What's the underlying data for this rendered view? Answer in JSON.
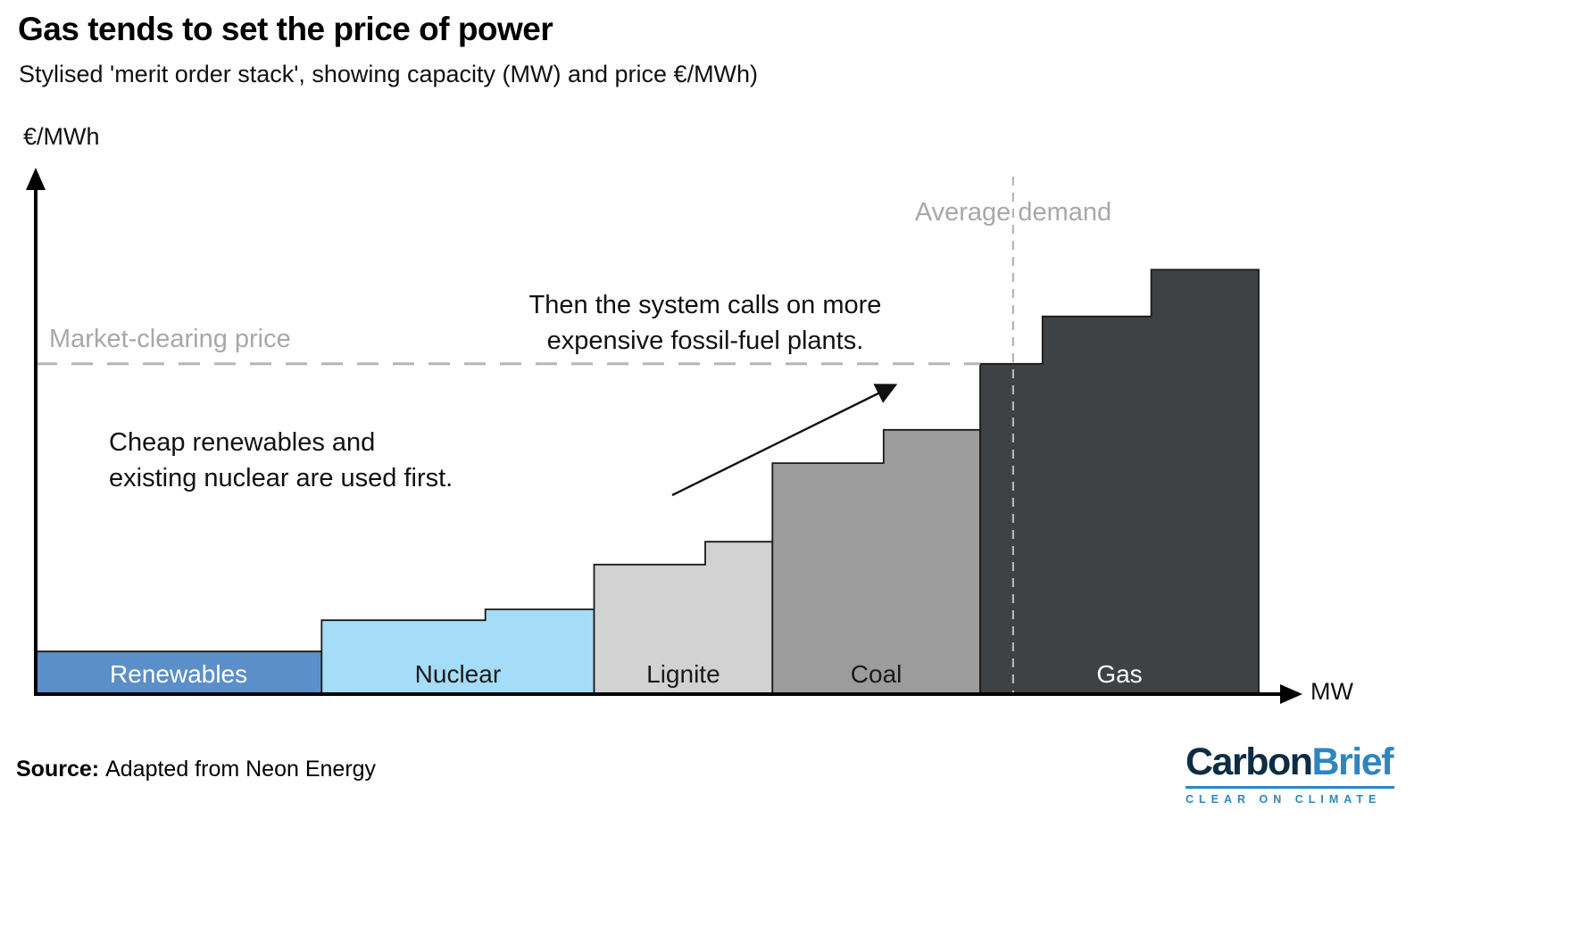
{
  "header": {
    "title": "Gas tends to set the price of power",
    "subtitle": "Stylised 'merit order stack', showing capacity (MW) and price €/MWh)"
  },
  "axes": {
    "y_label": "€/MWh",
    "x_label": "MW"
  },
  "annotations": {
    "market_clearing": "Market-clearing price",
    "average_demand": "Average demand",
    "note_cheap": {
      "line1": "Cheap renewables and",
      "line2": "existing nuclear are used first."
    },
    "note_expensive": {
      "line1": "Then the system calls on more",
      "line2": "expensive fossil-fuel plants."
    }
  },
  "footer": {
    "source_label": "Source:",
    "source_text": "Adapted from Neon Energy"
  },
  "logo": {
    "part1": "Carbon",
    "part2": "Brief",
    "tagline": "CLEAR ON CLIMATE"
  },
  "chart_data": {
    "type": "bar",
    "subtype": "merit-order-stack-step-chart",
    "title": "Gas tends to set the price of power",
    "xlabel": "MW",
    "ylabel": "€/MWh",
    "numeric_ticks": false,
    "units_note": "Stylised chart: capacity (x) and price (y) in relative units 0-100; no numeric tick labels are shown in the original",
    "segments": [
      {
        "name": "Renewables",
        "color": "#5b8fc9",
        "label_color": "#ffffff",
        "steps": [
          {
            "capacity": 23.4,
            "price": 8.2
          }
        ]
      },
      {
        "name": "Nuclear",
        "color": "#a5dcf7",
        "label_color": "#1a1a1a",
        "steps": [
          {
            "capacity": 13.4,
            "price": 14.2
          },
          {
            "capacity": 8.9,
            "price": 16.3
          }
        ]
      },
      {
        "name": "Lignite",
        "color": "#d2d2d2",
        "label_color": "#1a1a1a",
        "steps": [
          {
            "capacity": 9.1,
            "price": 24.9
          },
          {
            "capacity": 5.5,
            "price": 29.3
          }
        ]
      },
      {
        "name": "Coal",
        "color": "#9c9c9c",
        "label_color": "#1a1a1a",
        "steps": [
          {
            "capacity": 9.1,
            "price": 44.4
          },
          {
            "capacity": 7.9,
            "price": 50.8
          }
        ]
      },
      {
        "name": "Gas",
        "color": "#3f4245",
        "label_color": "#ffffff",
        "steps": [
          {
            "capacity": 5.1,
            "price": 63.5
          },
          {
            "capacity": 8.9,
            "price": 72.6
          },
          {
            "capacity": 8.8,
            "price": 81.6
          }
        ]
      }
    ],
    "market_clearing_price": 63.5,
    "market_line_end_capacity": 77.3,
    "average_demand_capacity": 80.0,
    "colors": {
      "dashed_lines": "#b5b5b5",
      "gray_labels": "#a8a8a8",
      "axis": "#000000",
      "bar_outline": "#1a1a1a"
    }
  }
}
